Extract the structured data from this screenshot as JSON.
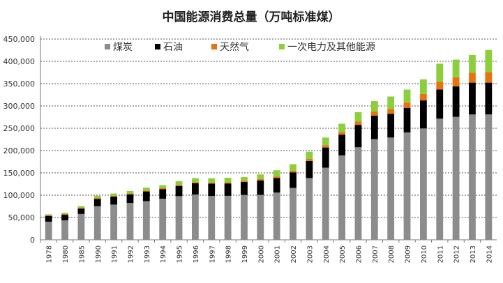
{
  "chart_data": {
    "type": "bar",
    "stacked": true,
    "title": "中国能源消费总量（万吨标准煤）",
    "categories": [
      "1978",
      "1980",
      "1985",
      "1990",
      "1991",
      "1992",
      "1993",
      "1994",
      "1995",
      "1996",
      "1997",
      "1998",
      "1999",
      "2000",
      "2001",
      "2002",
      "2003",
      "2004",
      "2005",
      "2006",
      "2007",
      "2008",
      "2009",
      "2010",
      "2011",
      "2012",
      "2013",
      "2014"
    ],
    "series": [
      {
        "name": "煤炭",
        "color": "#8c8c8c",
        "values": [
          40500,
          43500,
          58000,
          75200,
          79000,
          82600,
          86600,
          92100,
          97900,
          101400,
          98400,
          98600,
          100600,
          100700,
          105800,
          116200,
          138400,
          161700,
          189200,
          207400,
          225800,
          229200,
          240700,
          249600,
          271700,
          275500,
          280900,
          281000
        ]
      },
      {
        "name": "石油",
        "color": "#000000",
        "values": [
          13000,
          12500,
          12000,
          16400,
          17700,
          19100,
          21800,
          21300,
          22900,
          25300,
          27500,
          27700,
          29000,
          32300,
          32800,
          35000,
          38400,
          45100,
          46500,
          50200,
          52700,
          53300,
          55100,
          62800,
          65000,
          68400,
          71300,
          71200
        ]
      },
      {
        "name": "天然气",
        "color": "#e8730c",
        "values": [
          1900,
          1800,
          1500,
          2100,
          2100,
          2100,
          2000,
          2200,
          2300,
          2400,
          2400,
          2400,
          2700,
          3200,
          3400,
          3600,
          4500,
          5200,
          6100,
          7200,
          8900,
          10900,
          11800,
          14400,
          17800,
          20300,
          22100,
          23900
        ]
      },
      {
        "name": "一次电力及其他能源",
        "color": "#8ccf3c",
        "values": [
          1700,
          2600,
          3700,
          5000,
          4900,
          5700,
          6400,
          6800,
          8100,
          9100,
          9500,
          10400,
          8500,
          10300,
          13900,
          14600,
          16200,
          17100,
          18300,
          21200,
          23500,
          27700,
          29000,
          32900,
          40200,
          39700,
          39800,
          49400
        ]
      }
    ],
    "ylim": [
      0,
      450000
    ],
    "yticks": [
      "0",
      "50,000",
      "100,000",
      "150,000",
      "200,000",
      "250,000",
      "300,000",
      "350,000",
      "400,000",
      "450,000"
    ],
    "legend_position": "top",
    "grid": "dotted horizontal"
  }
}
